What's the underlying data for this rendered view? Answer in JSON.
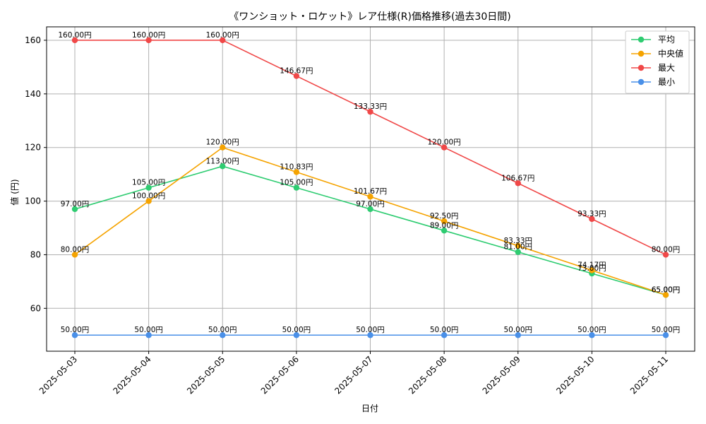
{
  "chart_data": {
    "type": "line",
    "title": "《ワンショット・ロケット》レア仕様(R)価格推移(過去30日間)",
    "xlabel": "日付",
    "ylabel": "値 (円)",
    "categories": [
      "2025-05-03",
      "2025-05-04",
      "2025-05-05",
      "2025-05-06",
      "2025-05-07",
      "2025-05-08",
      "2025-05-09",
      "2025-05-10",
      "2025-05-11"
    ],
    "ylim": [
      44,
      165
    ],
    "yticks": [
      60,
      80,
      100,
      120,
      140,
      160
    ],
    "grid": true,
    "legend_position": "top-right",
    "series": [
      {
        "name": "平均",
        "color": "#2ecc71",
        "values": [
          97.0,
          105.0,
          113.0,
          105.0,
          97.0,
          89.0,
          81.0,
          73.0,
          65.0
        ],
        "labels": [
          "97.00円",
          "105.00円",
          "113.00円",
          "105.00円",
          "97.00円",
          "89.00円",
          "81.00円",
          "73.00円",
          "65.00円"
        ]
      },
      {
        "name": "中央値",
        "color": "#f5a300",
        "values": [
          80.0,
          100.0,
          120.0,
          110.83,
          101.67,
          92.5,
          83.33,
          74.17,
          65.0
        ],
        "labels": [
          "80.00円",
          "100.00円",
          "120.00円",
          "110.83円",
          "101.67円",
          "92.50円",
          "83.33円",
          "74.17円",
          "65.00円"
        ]
      },
      {
        "name": "最大",
        "color": "#f04848",
        "values": [
          160.0,
          160.0,
          160.0,
          146.67,
          133.33,
          120.0,
          106.67,
          93.33,
          80.0
        ],
        "labels": [
          "160.00円",
          "160.00円",
          "160.00円",
          "146.67円",
          "133.33円",
          "120.00円",
          "106.67円",
          "93.33円",
          "80.00円"
        ]
      },
      {
        "name": "最小",
        "color": "#4a90e8",
        "values": [
          50.0,
          50.0,
          50.0,
          50.0,
          50.0,
          50.0,
          50.0,
          50.0,
          50.0
        ],
        "labels": [
          "50.00円",
          "50.00円",
          "50.00円",
          "50.00円",
          "50.00円",
          "50.00円",
          "50.00円",
          "50.00円",
          "50.00円"
        ]
      }
    ]
  }
}
